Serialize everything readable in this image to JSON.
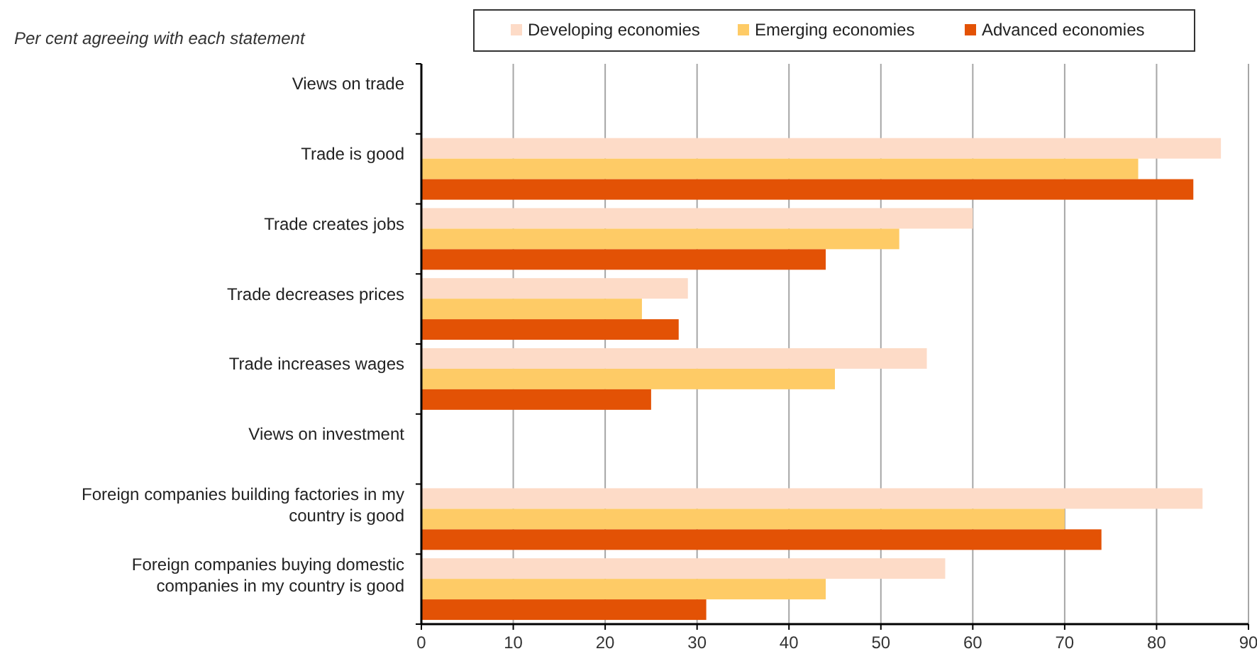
{
  "chart_data": {
    "type": "bar",
    "orientation": "horizontal",
    "title": "Per cent agreeing with each statement",
    "categories": [
      "Views on trade",
      "Trade is good",
      "Trade creates jobs",
      "Trade decreases prices",
      "Trade increases wages",
      "Views on investment",
      "Foreign companies building factories in my country is good",
      "Foreign companies buying domestic companies in my country is good"
    ],
    "series": [
      {
        "name": "Developing economies",
        "color": "#fddbc7",
        "values": [
          null,
          87,
          60,
          29,
          55,
          null,
          85,
          57
        ]
      },
      {
        "name": "Emerging economies",
        "color": "#fecb66",
        "values": [
          null,
          78,
          52,
          24,
          45,
          null,
          70,
          44
        ]
      },
      {
        "name": "Advanced economies",
        "color": "#e35205",
        "values": [
          null,
          84,
          44,
          28,
          25,
          null,
          74,
          31
        ]
      }
    ],
    "xlim": [
      0,
      90
    ],
    "xticks": [
      0,
      10,
      20,
      30,
      40,
      50,
      60,
      70,
      80,
      90
    ],
    "grid": "x",
    "legend": "top"
  }
}
